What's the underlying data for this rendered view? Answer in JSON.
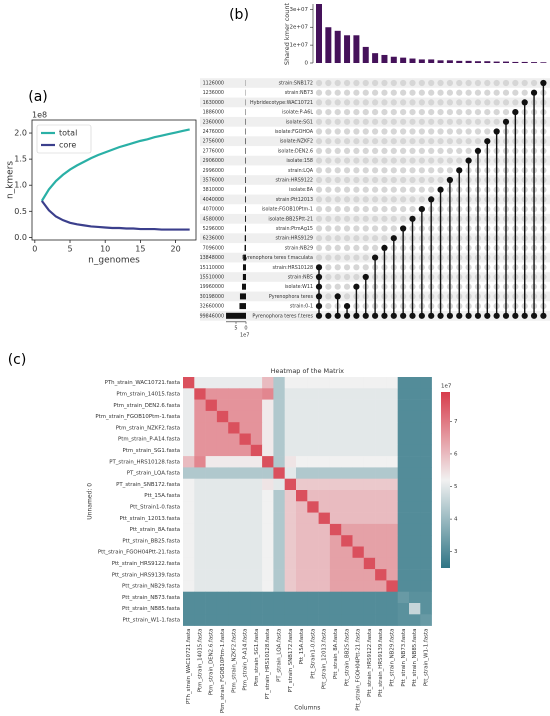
{
  "chart_data": [
    {
      "type": "line",
      "panel_label": "(a)",
      "xlabel": "n_genomes",
      "ylabel": "n_kmers",
      "y_offset_label": "1e8",
      "x": [
        1,
        2,
        3,
        4,
        5,
        6,
        7,
        8,
        9,
        10,
        11,
        12,
        13,
        14,
        15,
        16,
        17,
        18,
        19,
        20,
        21,
        22
      ],
      "series": [
        {
          "name": "total",
          "color": "#2ab0a6",
          "values": [
            0.7,
            0.92,
            1.08,
            1.2,
            1.3,
            1.38,
            1.45,
            1.52,
            1.58,
            1.63,
            1.68,
            1.73,
            1.77,
            1.81,
            1.85,
            1.88,
            1.92,
            1.95,
            1.98,
            2.01,
            2.04,
            2.07
          ]
        },
        {
          "name": "core",
          "color": "#3b3f8c",
          "values": [
            0.7,
            0.52,
            0.4,
            0.33,
            0.28,
            0.25,
            0.23,
            0.21,
            0.2,
            0.19,
            0.18,
            0.18,
            0.17,
            0.17,
            0.16,
            0.16,
            0.16,
            0.15,
            0.15,
            0.15,
            0.15,
            0.15
          ]
        }
      ],
      "xlim": [
        -0.4,
        22.9
      ],
      "xticks": [
        0,
        5,
        10,
        15,
        20
      ],
      "ylim": [
        -0.05,
        2.25
      ],
      "yticks": [
        {
          "value": 0,
          "label": "0.0"
        },
        0.5,
        {
          "value": 1,
          "label": "1.0"
        },
        1.5,
        {
          "value": 2,
          "label": "2.0"
        }
      ],
      "legend": "upper left"
    },
    {
      "type": "upset",
      "panel_label": "(b)",
      "ylabel": "Shared kmer count",
      "bar_color": "#45125a",
      "intersection_sizes": [
        33000000,
        20000000,
        18000000,
        15500000,
        15500000,
        9000000,
        5500000,
        4500000,
        3500000,
        3000000,
        2500000,
        2000000,
        2000000,
        1500000,
        1500000,
        1200000,
        1200000,
        1000000,
        1000000,
        800000,
        800000,
        600000,
        600000,
        500000,
        400000
      ],
      "ylim": [
        0,
        33000000
      ],
      "yticks": [
        0,
        {
          "value": 10000000,
          "label": "1e+07"
        },
        {
          "value": 20000000,
          "label": "2e+07"
        },
        {
          "value": 30000000,
          "label": "3e+07"
        }
      ],
      "set_names": [
        "strain:SNB172",
        "strain:NB73",
        "Hybridecotype:WAC10721",
        "isolate:P-A6L",
        "isolate:SG1",
        "isolate:FGOHOA",
        "isolate:NZKF2",
        "isolate:DEN2.6",
        "isolate:158",
        "strain:LQA",
        "strain:HRS9122",
        "isolate:8A",
        "strain:Ptt12013",
        "isolate:FGOB10Ptm-1",
        "isolate:BB25Ptt-21",
        "strain:PtmAg15",
        "strain:HRS9129",
        "strain:NB29",
        "Pyrenophora teres f.maculata",
        "strain:HRS10128",
        "strain:NB5",
        "isolate:W11",
        "Pyrenophora teres",
        "strain:0-1",
        "Pyrenophora teres f.teres"
      ],
      "set_sizes": [
        0.1126,
        0.1236,
        0.163,
        0.1886,
        0.236,
        0.2476,
        0.2756,
        0.2776,
        0.2906,
        0.2996,
        0.3576,
        0.381,
        0.404,
        0.407,
        0.458,
        0.5296,
        0.6236,
        0.7096,
        1.3848,
        1.511,
        1.551,
        1.996,
        3.0198,
        3.266,
        9.9846
      ],
      "set_size_labels": [
        "1126000",
        "1236000",
        "1630000",
        "1886000",
        "2360000",
        "2476000",
        "2756000",
        "2776000",
        "2906000",
        "2996000",
        "3576000",
        "3810000",
        "4040000",
        "4070000",
        "4580000",
        "5296000",
        "6236000",
        "7096000",
        "13848000",
        "15110000",
        "15510000",
        "19960000",
        "30198000",
        "32660000",
        "99846000"
      ],
      "set_size_xlim": [
        10,
        0
      ],
      "set_size_ticks": [
        5,
        0
      ],
      "set_size_offset_label": "1e7",
      "intersections": [
        [
          19,
          20,
          21,
          22,
          23,
          24
        ],
        [
          24
        ],
        [
          22,
          24
        ],
        [
          23,
          24
        ],
        [
          21,
          24
        ],
        [
          20,
          24
        ],
        [
          18,
          24
        ],
        [
          17,
          24
        ],
        [
          16,
          24
        ],
        [
          15,
          24
        ],
        [
          14,
          24
        ],
        [
          13,
          24
        ],
        [
          12,
          24
        ],
        [
          11,
          24
        ],
        [
          10,
          24
        ],
        [
          9,
          24
        ],
        [
          8,
          24
        ],
        [
          7,
          24
        ],
        [
          6,
          24
        ],
        [
          5,
          24
        ],
        [
          4,
          24
        ],
        [
          3,
          24
        ],
        [
          2,
          24
        ],
        [
          1,
          24
        ],
        [
          0,
          24
        ]
      ]
    },
    {
      "type": "heatmap",
      "panel_label": "(c)",
      "title": "Heatmap of the Matrix",
      "xlabel": "Columns",
      "ylabel": "Unnamed: 0",
      "rows": [
        "PTh_strain_WAC10721.fasta",
        "Ptm_strain_14015.fasta",
        "Ptm_strain_DEN2.6.fasta",
        "Ptm_strain_FGOB10Ptm-1.fasta",
        "Ptm_strain_NZKF2.fasta",
        "Ptm_strain_P-A14.fasta",
        "Ptm_strain_SG1.fasta",
        "PT_strain_HRS10128.fasta",
        "PT_strain_LQA.fasta",
        "PT_strain_SNB172.fasta",
        "Ptt_15A.fasta",
        "Ptt_Strain1-0.fasta",
        "Ptt_strain_12013.fasta",
        "Ptt_strain_8A.fasta",
        "Ptt_strain_BB25.fasta",
        "Ptt_strain_FGOH04Ptt-21.fasta",
        "Ptt_strain_HRS9122.fasta",
        "Ptt_strain_HRS9139.fasta",
        "Ptt_strain_NB29.fasta",
        "Ptt_strain_NB73.fasta",
        "Ptt_strain_NB85.fasta",
        "Ptt_strain_W1-1.fasta"
      ],
      "columns": [
        "PTh_strain_WAC10721.fasta",
        "Ptm_strain_14015.fasta",
        "Ptm_strain_DEN2.6.fasta",
        "Ptm_strain_FGOB10Ptm-1.fasta",
        "Ptm_strain_NZKF2.fasta",
        "Ptm_strain_P-A14.fasta",
        "Ptm_strain_SG1.fasta",
        "PT_strain_HRS10128.fasta",
        "PT_strain_LQA.fasta",
        "PT_strain_SNB172.fasta",
        "Ptt_15A.fasta",
        "Ptt_Strain1-0.fasta",
        "Ptt_strain_12013.fasta",
        "Ptt_strain_8A.fasta",
        "Ptt_strain_BB25.fasta",
        "Ptt_strain_FGOH04Ptt-21.fasta",
        "Ptt_strain_HRS9122.fasta",
        "Ptt_strain_HRS9139.fasta",
        "Ptt_strain_NB29.fasta",
        "Ptt_strain_NB73.fasta",
        "Ptt_strain_NB85.fasta",
        "Ptt_strain_W1-1.fasta"
      ],
      "values": [
        [
          7.6,
          5.1,
          5.1,
          5.1,
          5.1,
          5.1,
          5.1,
          6.0,
          4.3,
          5.2,
          5.2,
          5.2,
          5.2,
          5.2,
          5.2,
          5.2,
          5.2,
          5.2,
          5.2,
          3.0,
          3.0,
          3.0
        ],
        [
          5.1,
          7.6,
          6.6,
          6.6,
          6.6,
          6.6,
          6.6,
          6.8,
          4.3,
          5.0,
          5.0,
          5.0,
          5.0,
          5.0,
          5.0,
          5.0,
          5.0,
          5.0,
          5.0,
          3.0,
          3.0,
          3.0
        ],
        [
          5.1,
          6.6,
          7.6,
          6.6,
          6.6,
          6.6,
          6.6,
          5.3,
          4.3,
          5.0,
          5.0,
          5.0,
          5.0,
          5.0,
          5.0,
          5.0,
          5.0,
          5.0,
          5.0,
          3.0,
          3.0,
          3.0
        ],
        [
          5.1,
          6.6,
          6.6,
          7.6,
          6.6,
          6.6,
          6.6,
          5.3,
          4.3,
          5.0,
          5.0,
          5.0,
          5.0,
          5.0,
          5.0,
          5.0,
          5.0,
          5.0,
          5.0,
          3.0,
          3.0,
          3.0
        ],
        [
          5.1,
          6.6,
          6.6,
          6.6,
          7.6,
          6.6,
          6.6,
          5.3,
          4.3,
          5.0,
          5.0,
          5.0,
          5.0,
          5.0,
          5.0,
          5.0,
          5.0,
          5.0,
          5.0,
          3.0,
          3.0,
          3.0
        ],
        [
          5.1,
          6.6,
          6.6,
          6.6,
          6.6,
          7.6,
          6.6,
          5.3,
          4.3,
          5.0,
          5.0,
          5.0,
          5.0,
          5.0,
          5.0,
          5.0,
          5.0,
          5.0,
          5.0,
          3.0,
          3.0,
          3.0
        ],
        [
          5.1,
          6.6,
          6.6,
          6.6,
          6.6,
          6.6,
          7.6,
          5.3,
          4.3,
          5.0,
          5.0,
          5.0,
          5.0,
          5.0,
          5.0,
          5.0,
          5.0,
          5.0,
          5.0,
          3.0,
          3.0,
          3.0
        ],
        [
          6.0,
          6.8,
          5.3,
          5.3,
          5.3,
          5.3,
          5.3,
          7.6,
          4.3,
          5.4,
          5.2,
          5.2,
          5.2,
          5.2,
          5.2,
          5.2,
          5.2,
          5.2,
          5.2,
          3.0,
          3.0,
          3.0
        ],
        [
          4.3,
          4.3,
          4.3,
          4.3,
          4.3,
          4.3,
          4.3,
          4.3,
          7.6,
          5.0,
          4.3,
          4.3,
          4.3,
          4.3,
          4.3,
          4.3,
          4.3,
          4.3,
          4.3,
          3.0,
          3.0,
          3.0
        ],
        [
          5.2,
          5.0,
          5.0,
          5.0,
          5.0,
          5.0,
          5.0,
          5.4,
          5.0,
          7.6,
          5.8,
          5.8,
          5.8,
          5.8,
          5.8,
          5.8,
          5.8,
          5.8,
          5.8,
          3.0,
          3.0,
          3.0
        ],
        [
          5.2,
          5.0,
          5.0,
          5.0,
          5.0,
          5.0,
          5.0,
          5.2,
          4.3,
          5.8,
          7.6,
          6.0,
          6.0,
          6.0,
          6.0,
          6.0,
          6.0,
          6.0,
          6.0,
          3.0,
          3.0,
          3.0
        ],
        [
          5.2,
          5.0,
          5.0,
          5.0,
          5.0,
          5.0,
          5.0,
          5.2,
          4.3,
          5.8,
          6.0,
          7.6,
          6.0,
          6.0,
          6.0,
          6.0,
          6.0,
          6.0,
          6.0,
          3.0,
          3.0,
          3.0
        ],
        [
          5.2,
          5.0,
          5.0,
          5.0,
          5.0,
          5.0,
          5.0,
          5.2,
          4.3,
          5.8,
          6.0,
          6.0,
          7.6,
          6.0,
          6.0,
          6.0,
          6.0,
          6.0,
          6.0,
          3.0,
          3.0,
          3.0
        ],
        [
          5.2,
          5.0,
          5.0,
          5.0,
          5.0,
          5.0,
          5.0,
          5.2,
          4.3,
          5.8,
          6.0,
          6.0,
          6.0,
          7.6,
          6.4,
          6.4,
          6.4,
          6.4,
          6.4,
          3.0,
          3.0,
          3.0
        ],
        [
          5.2,
          5.0,
          5.0,
          5.0,
          5.0,
          5.0,
          5.0,
          5.2,
          4.3,
          5.8,
          6.0,
          6.0,
          6.0,
          6.4,
          7.6,
          6.4,
          6.4,
          6.4,
          6.4,
          3.0,
          3.0,
          3.0
        ],
        [
          5.2,
          5.0,
          5.0,
          5.0,
          5.0,
          5.0,
          5.0,
          5.2,
          4.3,
          5.8,
          6.0,
          6.0,
          6.0,
          6.4,
          6.4,
          7.6,
          6.4,
          6.4,
          6.4,
          3.0,
          3.0,
          3.0
        ],
        [
          5.2,
          5.0,
          5.0,
          5.0,
          5.0,
          5.0,
          5.0,
          5.2,
          4.3,
          5.8,
          6.0,
          6.0,
          6.0,
          6.4,
          6.4,
          6.4,
          7.6,
          6.4,
          6.4,
          3.0,
          3.0,
          3.0
        ],
        [
          5.2,
          5.0,
          5.0,
          5.0,
          5.0,
          5.0,
          5.0,
          5.2,
          4.3,
          5.8,
          6.0,
          6.0,
          6.0,
          6.4,
          6.4,
          6.4,
          6.4,
          7.6,
          6.4,
          3.0,
          3.0,
          3.0
        ],
        [
          5.2,
          5.0,
          5.0,
          5.0,
          5.0,
          5.0,
          5.0,
          5.2,
          4.3,
          5.8,
          6.0,
          6.0,
          6.0,
          6.4,
          6.4,
          6.4,
          6.4,
          6.4,
          7.6,
          3.0,
          3.0,
          3.0
        ],
        [
          3.0,
          3.0,
          3.0,
          3.0,
          3.0,
          3.0,
          3.0,
          3.0,
          3.0,
          3.0,
          3.0,
          3.0,
          3.0,
          3.0,
          3.0,
          3.0,
          3.0,
          3.0,
          3.0,
          3.3,
          3.1,
          3.1
        ],
        [
          3.0,
          3.0,
          3.0,
          3.0,
          3.0,
          3.0,
          3.0,
          3.0,
          3.0,
          3.0,
          3.0,
          3.0,
          3.0,
          3.0,
          3.0,
          3.0,
          3.0,
          3.0,
          3.0,
          3.1,
          4.6,
          3.1
        ],
        [
          3.0,
          3.0,
          3.0,
          3.0,
          3.0,
          3.0,
          3.0,
          3.0,
          3.0,
          3.0,
          3.0,
          3.0,
          3.0,
          3.0,
          3.0,
          3.0,
          3.0,
          3.0,
          3.0,
          3.1,
          3.1,
          3.3
        ]
      ],
      "colormap": [
        "#2f7585",
        "#f1f1f1",
        "#d73c4b"
      ],
      "clim": [
        2.5,
        7.9
      ],
      "cticks": [
        3,
        4,
        5,
        6,
        7
      ],
      "c_offset_label": "1e7"
    }
  ]
}
